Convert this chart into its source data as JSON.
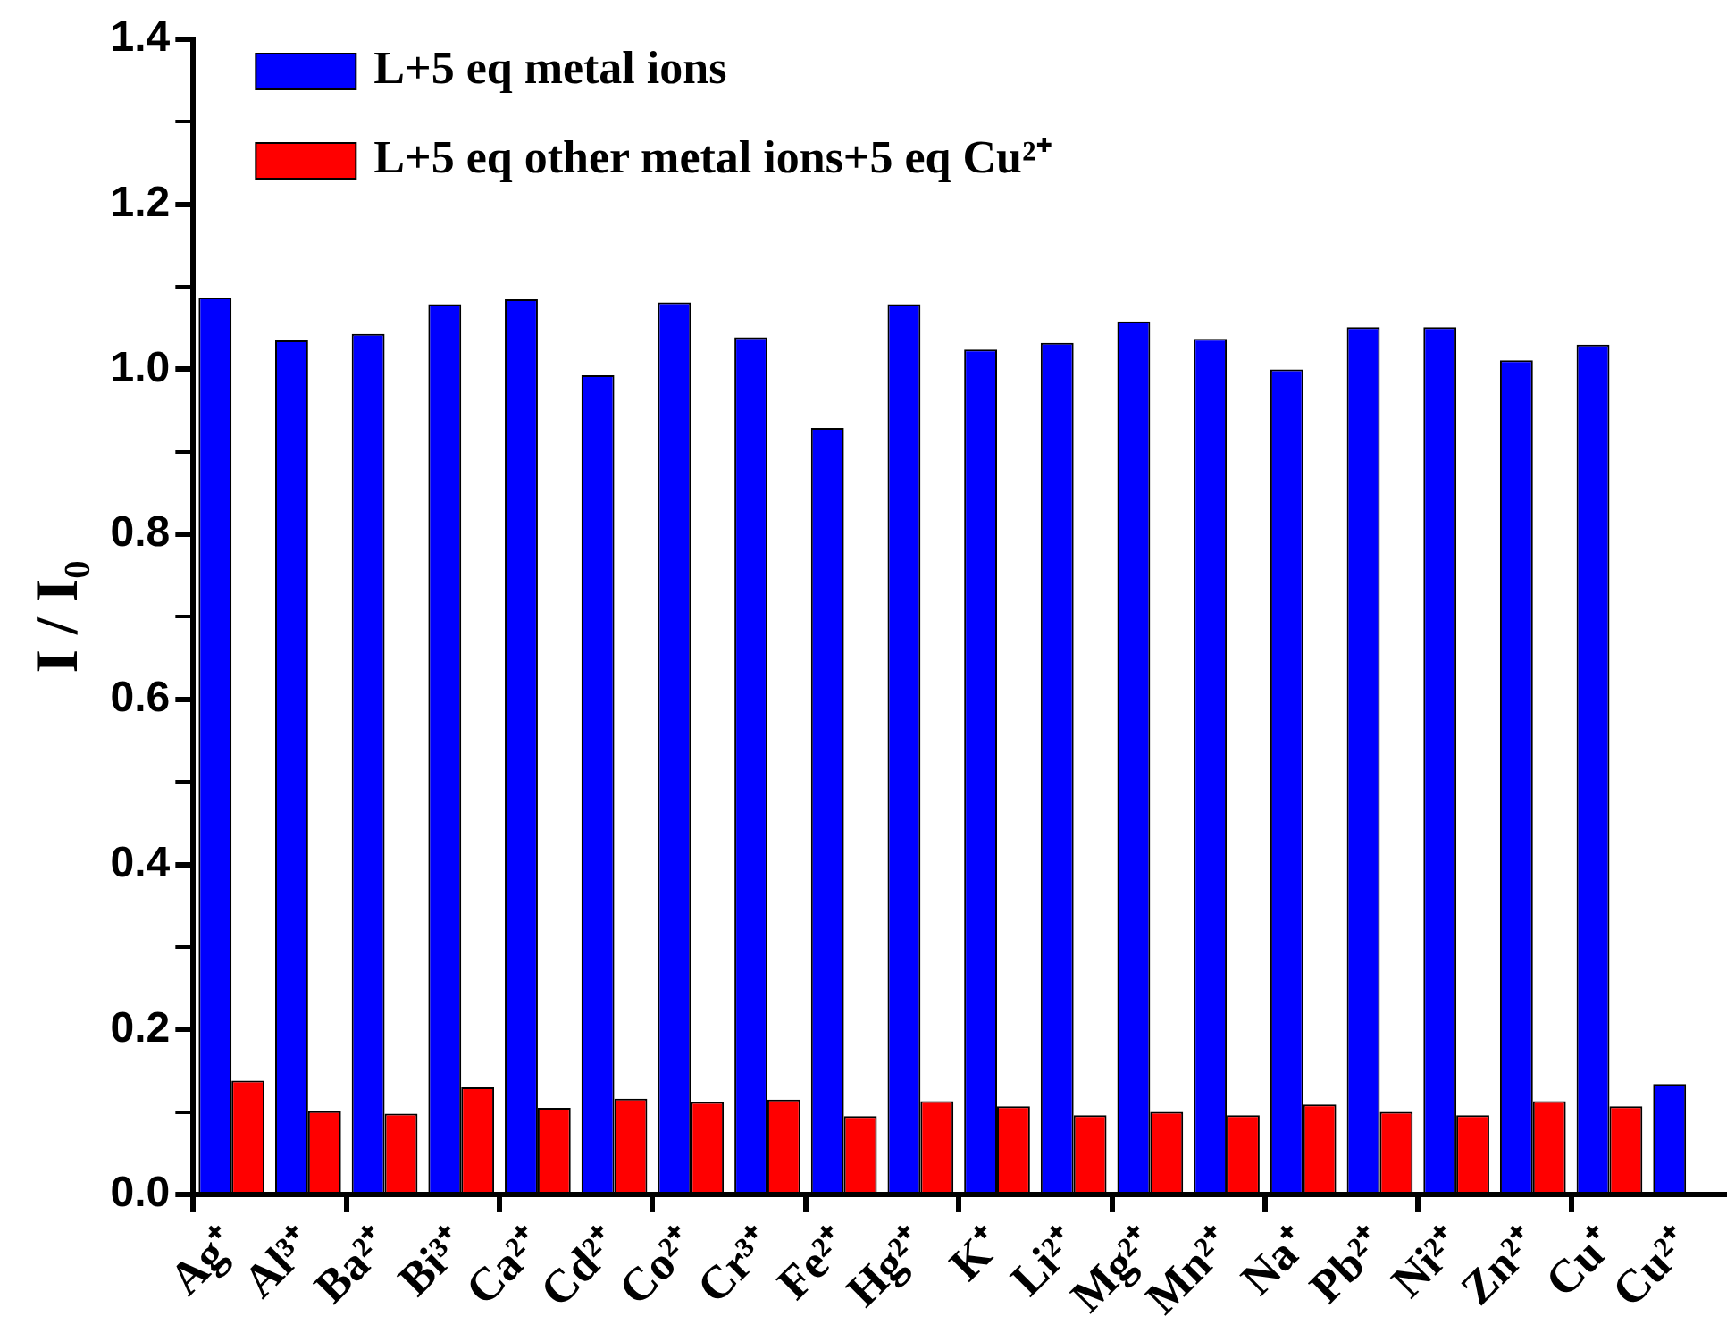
{
  "chart_data": {
    "type": "bar",
    "ylabel": "I / I₀",
    "categories": [
      "Ag⁺",
      "Al³⁺",
      "Ba²⁺",
      "Bi³⁺",
      "Ca²⁺",
      "Cd²⁺",
      "Co²⁺",
      "Cr³⁺",
      "Fe²⁺",
      "Hg²⁺",
      "K⁺",
      "Li²⁺",
      "Mg²⁺",
      "Mn²⁺",
      "Na⁺",
      "Pb²⁺",
      "Ni²⁺",
      "Zn²⁺",
      "Cu⁺",
      "Cu²⁺"
    ],
    "series": [
      {
        "name": "L+5 eq metal ions",
        "color": "#0000ff",
        "values": [
          1.087,
          1.035,
          1.043,
          1.079,
          1.085,
          0.993,
          1.081,
          1.039,
          0.929,
          1.079,
          1.024,
          1.032,
          1.058,
          1.037,
          1.0,
          1.051,
          1.051,
          1.011,
          1.03,
          0.134
        ]
      },
      {
        "name": "L+5 eq other metal ions+5 eq Cu²⁺",
        "color": "#ff0000",
        "values": [
          0.138,
          0.101,
          0.098,
          0.13,
          0.105,
          0.116,
          0.112,
          0.115,
          0.095,
          0.113,
          0.107,
          0.096,
          0.1,
          0.096,
          0.109,
          0.1,
          0.096,
          0.113,
          0.107,
          null
        ]
      }
    ],
    "ylim": [
      0,
      1.4
    ],
    "yticks": [
      {
        "value": 0,
        "label": "0.0"
      },
      {
        "value": 0.1,
        "label": null
      },
      {
        "value": 0.2,
        "label": "0.2"
      },
      {
        "value": 0.3,
        "label": null
      },
      {
        "value": 0.4,
        "label": "0.4"
      },
      {
        "value": 0.5,
        "label": null
      },
      {
        "value": 0.6,
        "label": "0.6"
      },
      {
        "value": 0.7,
        "label": null
      },
      {
        "value": 0.8,
        "label": "0.8"
      },
      {
        "value": 0.9,
        "label": null
      },
      {
        "value": 1.0,
        "label": "1.0"
      },
      {
        "value": 1.1,
        "label": null
      },
      {
        "value": 1.2,
        "label": "1.2"
      },
      {
        "value": 1.3,
        "label": null
      },
      {
        "value": 1.4,
        "label": "1.4"
      }
    ],
    "grid": false,
    "legend": "top left"
  }
}
